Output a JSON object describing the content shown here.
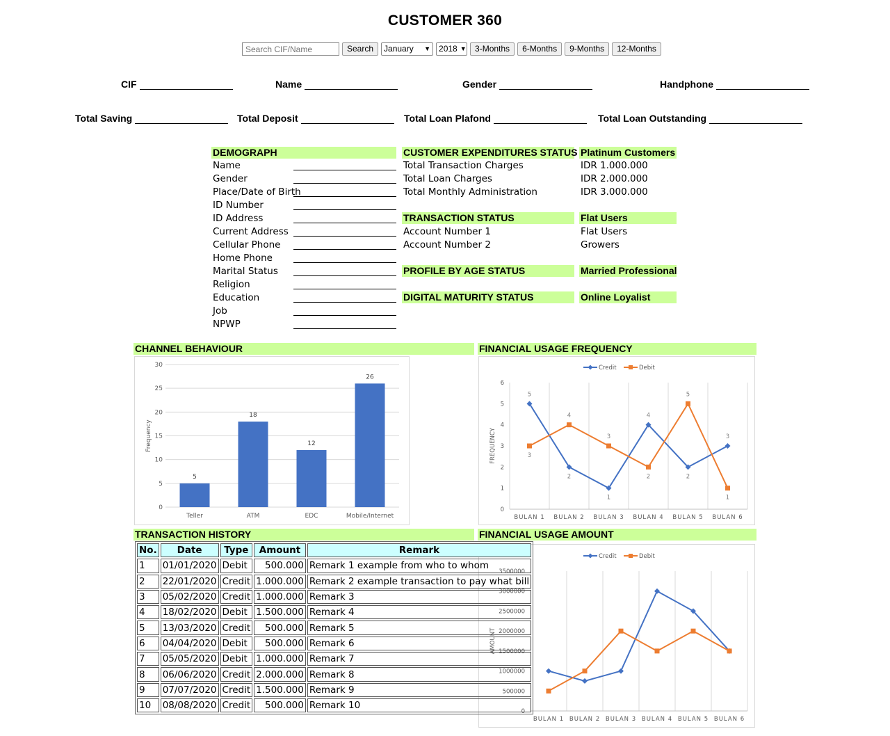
{
  "page": {
    "title": "CUSTOMER 360"
  },
  "search": {
    "placeholder": "Search CIF/Name",
    "search_label": "Search",
    "month": "January",
    "year": "2018",
    "period_buttons": [
      "3-Months",
      "6-Months",
      "9-Months",
      "12-Months"
    ]
  },
  "summary": {
    "cif": "CIF",
    "name": "Name",
    "gender": "Gender",
    "handphone": "Handphone",
    "total_saving": "Total Saving",
    "total_deposit": "Total Deposit",
    "total_loan_plafond": "Total Loan Plafond",
    "total_loan_outstanding": "Total Loan Outstanding"
  },
  "demograph": {
    "header": "DEMOGRAPH",
    "fields": [
      "Name",
      "Gender",
      "Place/Date of Birth",
      "ID Number",
      "ID Address",
      "Current Address",
      "Cellular Phone",
      "Home Phone",
      "Marital Status",
      "Religion",
      "Education",
      "Job",
      "NPWP"
    ]
  },
  "expenditures": {
    "header": "CUSTOMER EXPENDITURES STATUS",
    "status": "Platinum Customers",
    "rows": [
      {
        "label": "Total Transaction Charges",
        "value": "IDR 1.000.000"
      },
      {
        "label": "Total Loan Charges",
        "value": "IDR 2.000.000"
      },
      {
        "label": "Total Monthly Administration",
        "value": "IDR 3.000.000"
      }
    ]
  },
  "transaction_status": {
    "header": "TRANSACTION STATUS",
    "status": "Flat Users",
    "rows": [
      {
        "label": "Account Number 1",
        "value": "Flat Users"
      },
      {
        "label": "Account Number 2",
        "value": "Growers"
      }
    ]
  },
  "profile_age": {
    "header": "PROFILE BY AGE STATUS",
    "status": "Married Professional"
  },
  "digital_maturity": {
    "header": "DIGITAL MATURITY STATUS",
    "status": "Online Loyalist"
  },
  "sections": {
    "channel_behaviour": "CHANNEL BEHAVIOUR",
    "financial_usage_frequency": "FINANCIAL USAGE FREQUENCY",
    "transaction_history": "TRANSACTION HISTORY",
    "financial_usage_amount": "FINANCIAL USAGE AMOUNT"
  },
  "transaction_history": {
    "columns": [
      "No.",
      "Date",
      "Type",
      "Amount",
      "Remark"
    ],
    "rows": [
      [
        "1",
        "01/01/2020",
        "Debit",
        "500.000",
        "Remark 1 example from who to whom"
      ],
      [
        "2",
        "22/01/2020",
        "Credit",
        "1.000.000",
        "Remark 2 example transaction to pay what bill"
      ],
      [
        "3",
        "05/02/2020",
        "Credit",
        "1.000.000",
        "Remark 3"
      ],
      [
        "4",
        "18/02/2020",
        "Debit",
        "1.500.000",
        "Remark 4"
      ],
      [
        "5",
        "13/03/2020",
        "Credit",
        "500.000",
        "Remark 5"
      ],
      [
        "6",
        "04/04/2020",
        "Debit",
        "500.000",
        "Remark 6"
      ],
      [
        "7",
        "05/05/2020",
        "Debit",
        "1.000.000",
        "Remark 7"
      ],
      [
        "8",
        "06/06/2020",
        "Credit",
        "2.000.000",
        "Remark 8"
      ],
      [
        "9",
        "07/07/2020",
        "Credit",
        "1.500.000",
        "Remark 9"
      ],
      [
        "10",
        "08/08/2020",
        "Credit",
        "500.000",
        "Remark 10"
      ]
    ]
  },
  "colors": {
    "credit": "#4472c4",
    "debit": "#ed7d31",
    "bar": "#4472c4",
    "header_green": "#ccff99",
    "table_header": "#ccffff"
  },
  "chart_data": [
    {
      "type": "bar",
      "categories": [
        "Teller",
        "ATM",
        "EDC",
        "Mobile/Internet"
      ],
      "values": [
        5,
        18,
        12,
        26
      ],
      "ylabel": "Frequency",
      "ylim": [
        0,
        30
      ],
      "yticks": [
        0,
        5,
        10,
        15,
        20,
        25,
        30
      ],
      "grid": true
    },
    {
      "type": "line",
      "categories": [
        "BULAN 1",
        "BULAN 2",
        "BULAN 3",
        "BULAN 4",
        "BULAN 5",
        "BULAN 6"
      ],
      "series": [
        {
          "name": "Credit",
          "values": [
            5,
            2,
            1,
            4,
            2,
            3
          ]
        },
        {
          "name": "Debit",
          "values": [
            3,
            4,
            3,
            2,
            5,
            1
          ]
        }
      ],
      "ylabel": "FREQUENCY",
      "ylim": [
        0,
        6
      ],
      "yticks": [
        0,
        1,
        2,
        3,
        4,
        5,
        6
      ],
      "legend": "top"
    },
    {
      "type": "line",
      "categories": [
        "BULAN 1",
        "BULAN 2",
        "BULAN 3",
        "BULAN 4",
        "BULAN 5",
        "BULAN 6"
      ],
      "series": [
        {
          "name": "Credit",
          "values": [
            1000000,
            750000,
            1000000,
            3000000,
            2500000,
            1500000
          ]
        },
        {
          "name": "Debit",
          "values": [
            500000,
            1000000,
            2000000,
            1500000,
            2000000,
            1500000
          ]
        }
      ],
      "ylabel": "AMOUNT",
      "ylim": [
        0,
        3500000
      ],
      "yticks": [
        0,
        500000,
        1000000,
        1500000,
        2000000,
        2500000,
        3000000,
        3500000
      ],
      "legend": "top"
    }
  ]
}
